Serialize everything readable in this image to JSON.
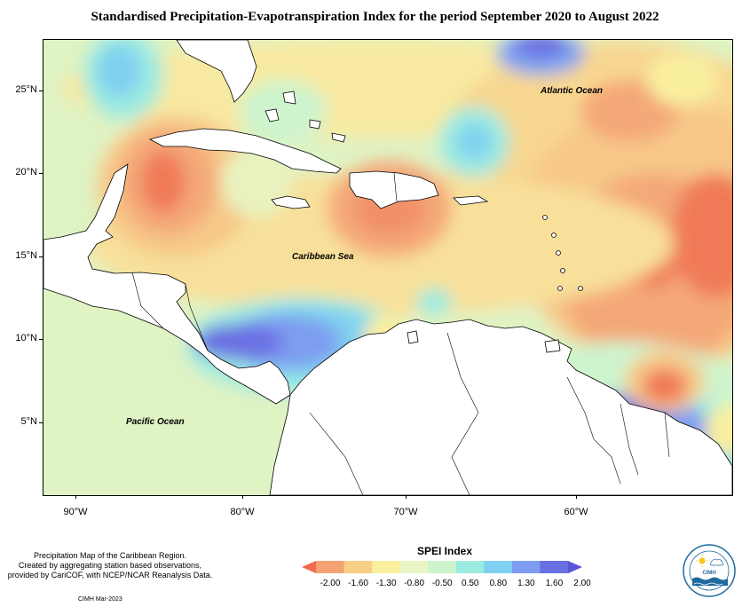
{
  "title": "Standardised Precipitation-Evapotranspiration Index for the period September 2020 to August 2022",
  "map": {
    "latitude_labels": [
      "25°N",
      "20°N",
      "15°N",
      "10°N",
      "5°N"
    ],
    "longitude_labels": [
      "90°W",
      "80°W",
      "70°W",
      "60°W"
    ],
    "region_labels": {
      "atlantic": "Atlantic Ocean",
      "caribbean": "Caribbean Sea",
      "pacific": "Pacific Ocean"
    }
  },
  "caption": {
    "line1": "Precipitation Map of the Caribbean Region.",
    "line2": "Created by aggregating station based observations,",
    "line3": "provided by CariCOF, with NCEP/NCAR Reanalysis Data.",
    "credit": "CIMH Mar-2023"
  },
  "legend": {
    "title": "SPEI Index",
    "tick_labels": [
      "-2.00",
      "-1.60",
      "-1.30",
      "-0.80",
      "-0.50",
      "0.50",
      "0.80",
      "1.30",
      "1.60",
      "2.00"
    ],
    "colors": [
      "#f06a4e",
      "#f4a273",
      "#f7cf86",
      "#f9ef9f",
      "#eaf5c6",
      "#cdf4cd",
      "#9cebe0",
      "#7fd0f1",
      "#7e9cf0",
      "#6a6fe2",
      "#5a55d8"
    ]
  },
  "logo": {
    "text": "CIMH"
  }
}
